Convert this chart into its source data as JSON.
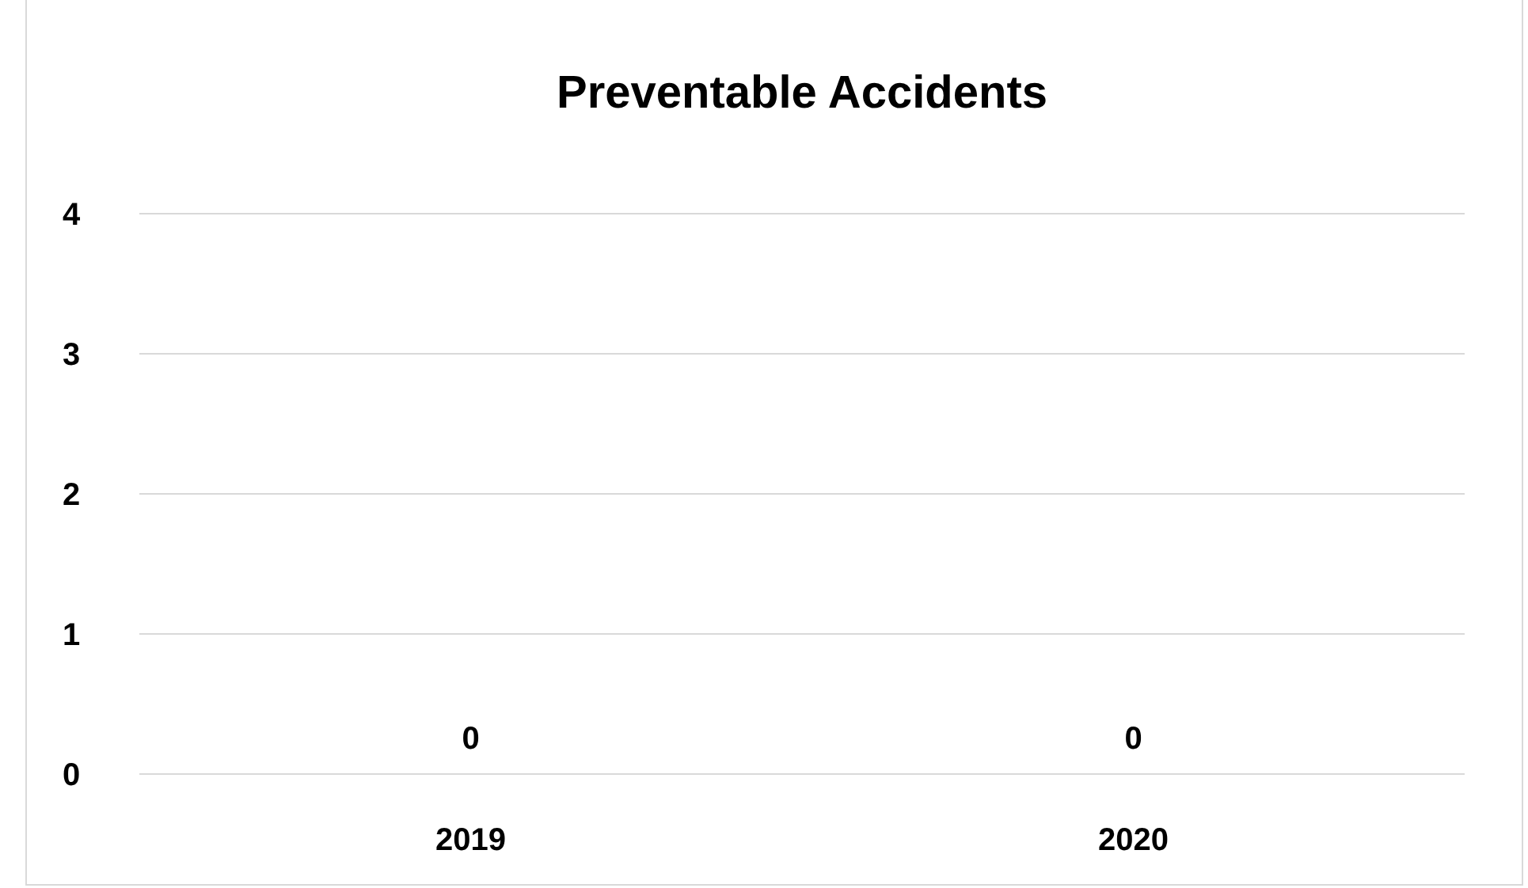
{
  "chart_data": {
    "type": "bar",
    "title": "Preventable Accidents",
    "categories": [
      "2019",
      "2020"
    ],
    "values": [
      0,
      0
    ],
    "ylim": [
      0,
      4
    ],
    "yticks": [
      0,
      1,
      2,
      3,
      4
    ],
    "grid": "y",
    "data_labels": true
  }
}
